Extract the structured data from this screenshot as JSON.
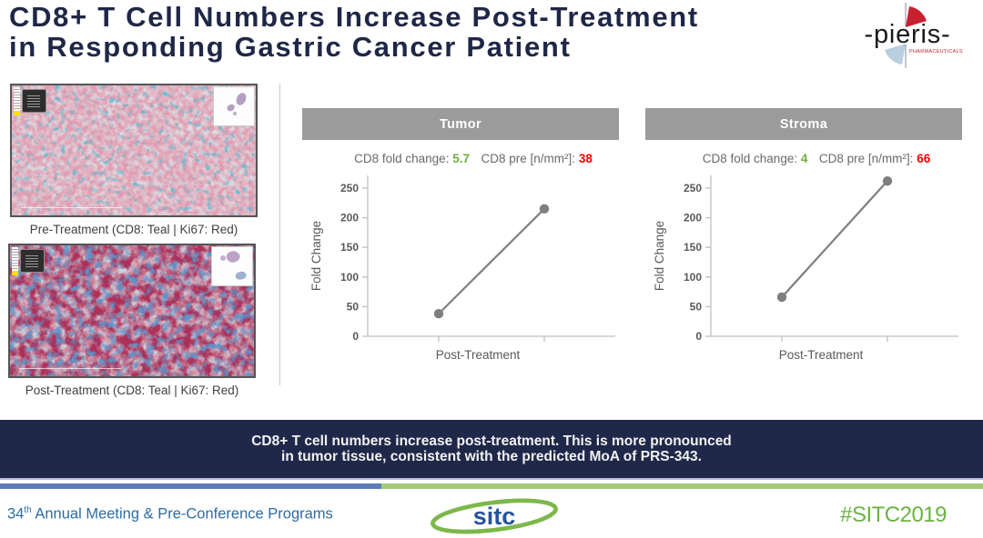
{
  "slide": {
    "title_line1": "CD8+ T Cell Numbers Increase Post-Treatment",
    "title_line2": "in Responding Gastric Cancer Patient",
    "banner_line1": "CD8+ T cell numbers increase post-treatment. This is more pronounced",
    "banner_line2": "in tumor tissue, consistent with the predicted MoA of PRS-343."
  },
  "logo": {
    "wordmark": "-pieris-",
    "subtext": "PHARMACEUTICALS",
    "red": "#c8202f",
    "blue": "#b9cfe0"
  },
  "figures": [
    {
      "caption": "Pre-Treatment (CD8: Teal | Ki67: Red)"
    },
    {
      "caption": "Post-Treatment (CD8: Teal | Ki67: Red)"
    }
  ],
  "footer": {
    "meeting_number": "34",
    "meeting_suffix": "th",
    "meeting_rest": " Annual Meeting & Pre-Conference Programs",
    "sitc_logo_text": "sitc",
    "hashtag": "#SITC2019"
  },
  "chart_data": [
    {
      "type": "line",
      "title": "Tumor",
      "stats": [
        {
          "label": "CD8 fold change:",
          "value": "5.7"
        },
        {
          "label": "CD8 pre [n/mm²]:",
          "value": "38"
        }
      ],
      "values": [
        38,
        215
      ],
      "ylabel": "Fold Change",
      "xlabel": "Post-Treatment",
      "yticks": [
        0,
        50,
        100,
        150,
        200,
        250
      ],
      "ylim": [
        0,
        270
      ]
    },
    {
      "type": "line",
      "title": "Stroma",
      "stats": [
        {
          "label": "CD8 fold change:",
          "value": "4"
        },
        {
          "label": "CD8 pre [n/mm²]:",
          "value": "66"
        }
      ],
      "values": [
        66,
        262
      ],
      "ylabel": "Fold Change",
      "xlabel": "Post-Treatment",
      "yticks": [
        0,
        50,
        100,
        150,
        200,
        250
      ],
      "ylim": [
        0,
        270
      ]
    }
  ]
}
